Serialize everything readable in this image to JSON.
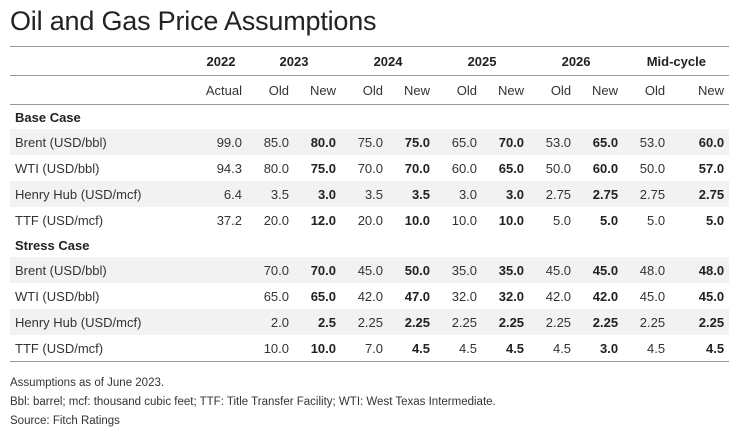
{
  "title": "Oil and Gas Price Assumptions",
  "years": [
    "2022",
    "2023",
    "2024",
    "2025",
    "2026",
    "Mid-cycle"
  ],
  "subheaders": [
    "Actual",
    "Old",
    "New",
    "Old",
    "New",
    "Old",
    "New",
    "Old",
    "New",
    "Old",
    "New"
  ],
  "sections": [
    {
      "name": "Base Case",
      "rows": [
        {
          "label": "Brent (USD/bbl)",
          "values": [
            "99.0",
            "85.0",
            "80.0",
            "75.0",
            "75.0",
            "65.0",
            "70.0",
            "53.0",
            "65.0",
            "53.0",
            "60.0"
          ]
        },
        {
          "label": "WTI (USD/bbl)",
          "values": [
            "94.3",
            "80.0",
            "75.0",
            "70.0",
            "70.0",
            "60.0",
            "65.0",
            "50.0",
            "60.0",
            "50.0",
            "57.0"
          ]
        },
        {
          "label": "Henry Hub (USD/mcf)",
          "values": [
            "6.4",
            "3.5",
            "3.0",
            "3.5",
            "3.5",
            "3.0",
            "3.0",
            "2.75",
            "2.75",
            "2.75",
            "2.75"
          ]
        },
        {
          "label": "TTF (USD/mcf)",
          "values": [
            "37.2",
            "20.0",
            "12.0",
            "20.0",
            "10.0",
            "10.0",
            "10.0",
            "5.0",
            "5.0",
            "5.0",
            "5.0"
          ]
        }
      ]
    },
    {
      "name": "Stress Case",
      "rows": [
        {
          "label": "Brent (USD/bbl)",
          "values": [
            "",
            "70.0",
            "70.0",
            "45.0",
            "50.0",
            "35.0",
            "35.0",
            "45.0",
            "45.0",
            "48.0",
            "48.0"
          ]
        },
        {
          "label": "WTI (USD/bbl)",
          "values": [
            "",
            "65.0",
            "65.0",
            "42.0",
            "47.0",
            "32.0",
            "32.0",
            "42.0",
            "42.0",
            "45.0",
            "45.0"
          ]
        },
        {
          "label": "Henry Hub (USD/mcf)",
          "values": [
            "",
            "2.0",
            "2.5",
            "2.25",
            "2.25",
            "2.25",
            "2.25",
            "2.25",
            "2.25",
            "2.25",
            "2.25"
          ]
        },
        {
          "label": "TTF (USD/mcf)",
          "values": [
            "",
            "10.0",
            "10.0",
            "7.0",
            "4.5",
            "4.5",
            "4.5",
            "4.5",
            "3.0",
            "4.5",
            "4.5"
          ]
        }
      ]
    }
  ],
  "notes": [
    "Assumptions as of June 2023.",
    "Bbl: barrel; mcf: thousand cubic feet; TTF: Title Transfer Facility; WTI: West Texas Intermediate.",
    "Source: Fitch Ratings"
  ]
}
